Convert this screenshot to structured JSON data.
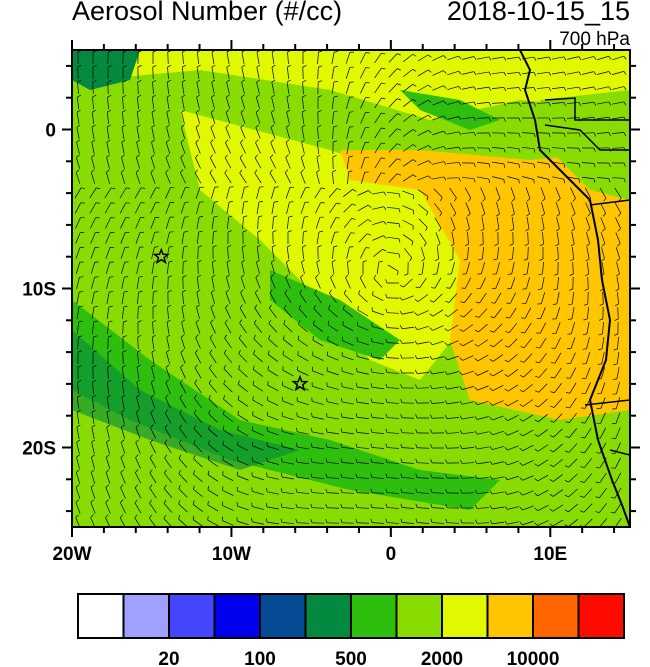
{
  "header": {
    "title": "Aerosol Number (#/cc)",
    "datetime": "2018-10-15_15",
    "level": "700 hPa"
  },
  "map": {
    "lon_range": [
      -20,
      15
    ],
    "lat_range": [
      -25,
      5
    ],
    "x_ticks": [
      {
        "lon": -20,
        "label": "20W"
      },
      {
        "lon": -10,
        "label": "10W"
      },
      {
        "lon": 0,
        "label": "0"
      },
      {
        "lon": 10,
        "label": "10E"
      }
    ],
    "y_ticks": [
      {
        "lat": 0,
        "label": "0"
      },
      {
        "lat": -10,
        "label": "10S"
      },
      {
        "lat": -20,
        "label": "20S"
      }
    ],
    "markers": [
      {
        "type": "star",
        "lon": -14.4,
        "lat": -8.0
      },
      {
        "type": "star",
        "lon": -5.7,
        "lat": -16.0
      }
    ],
    "overlays": [
      "wind-barbs",
      "coastline",
      "country-borders"
    ]
  },
  "colorbar": {
    "colors": [
      "#ffffff",
      "#a0a0ff",
      "#4646ff",
      "#0000ee",
      "#044a94",
      "#048a40",
      "#2ebe0e",
      "#88dc02",
      "#e0f800",
      "#ffc600",
      "#ff6600",
      "#ff0a00"
    ],
    "labels": [
      {
        "after_box": 2,
        "text": "20"
      },
      {
        "after_box": 4,
        "text": "100"
      },
      {
        "after_box": 6,
        "text": "500"
      },
      {
        "after_box": 8,
        "text": "2000"
      },
      {
        "after_box": 10,
        "text": "10000"
      }
    ]
  }
}
